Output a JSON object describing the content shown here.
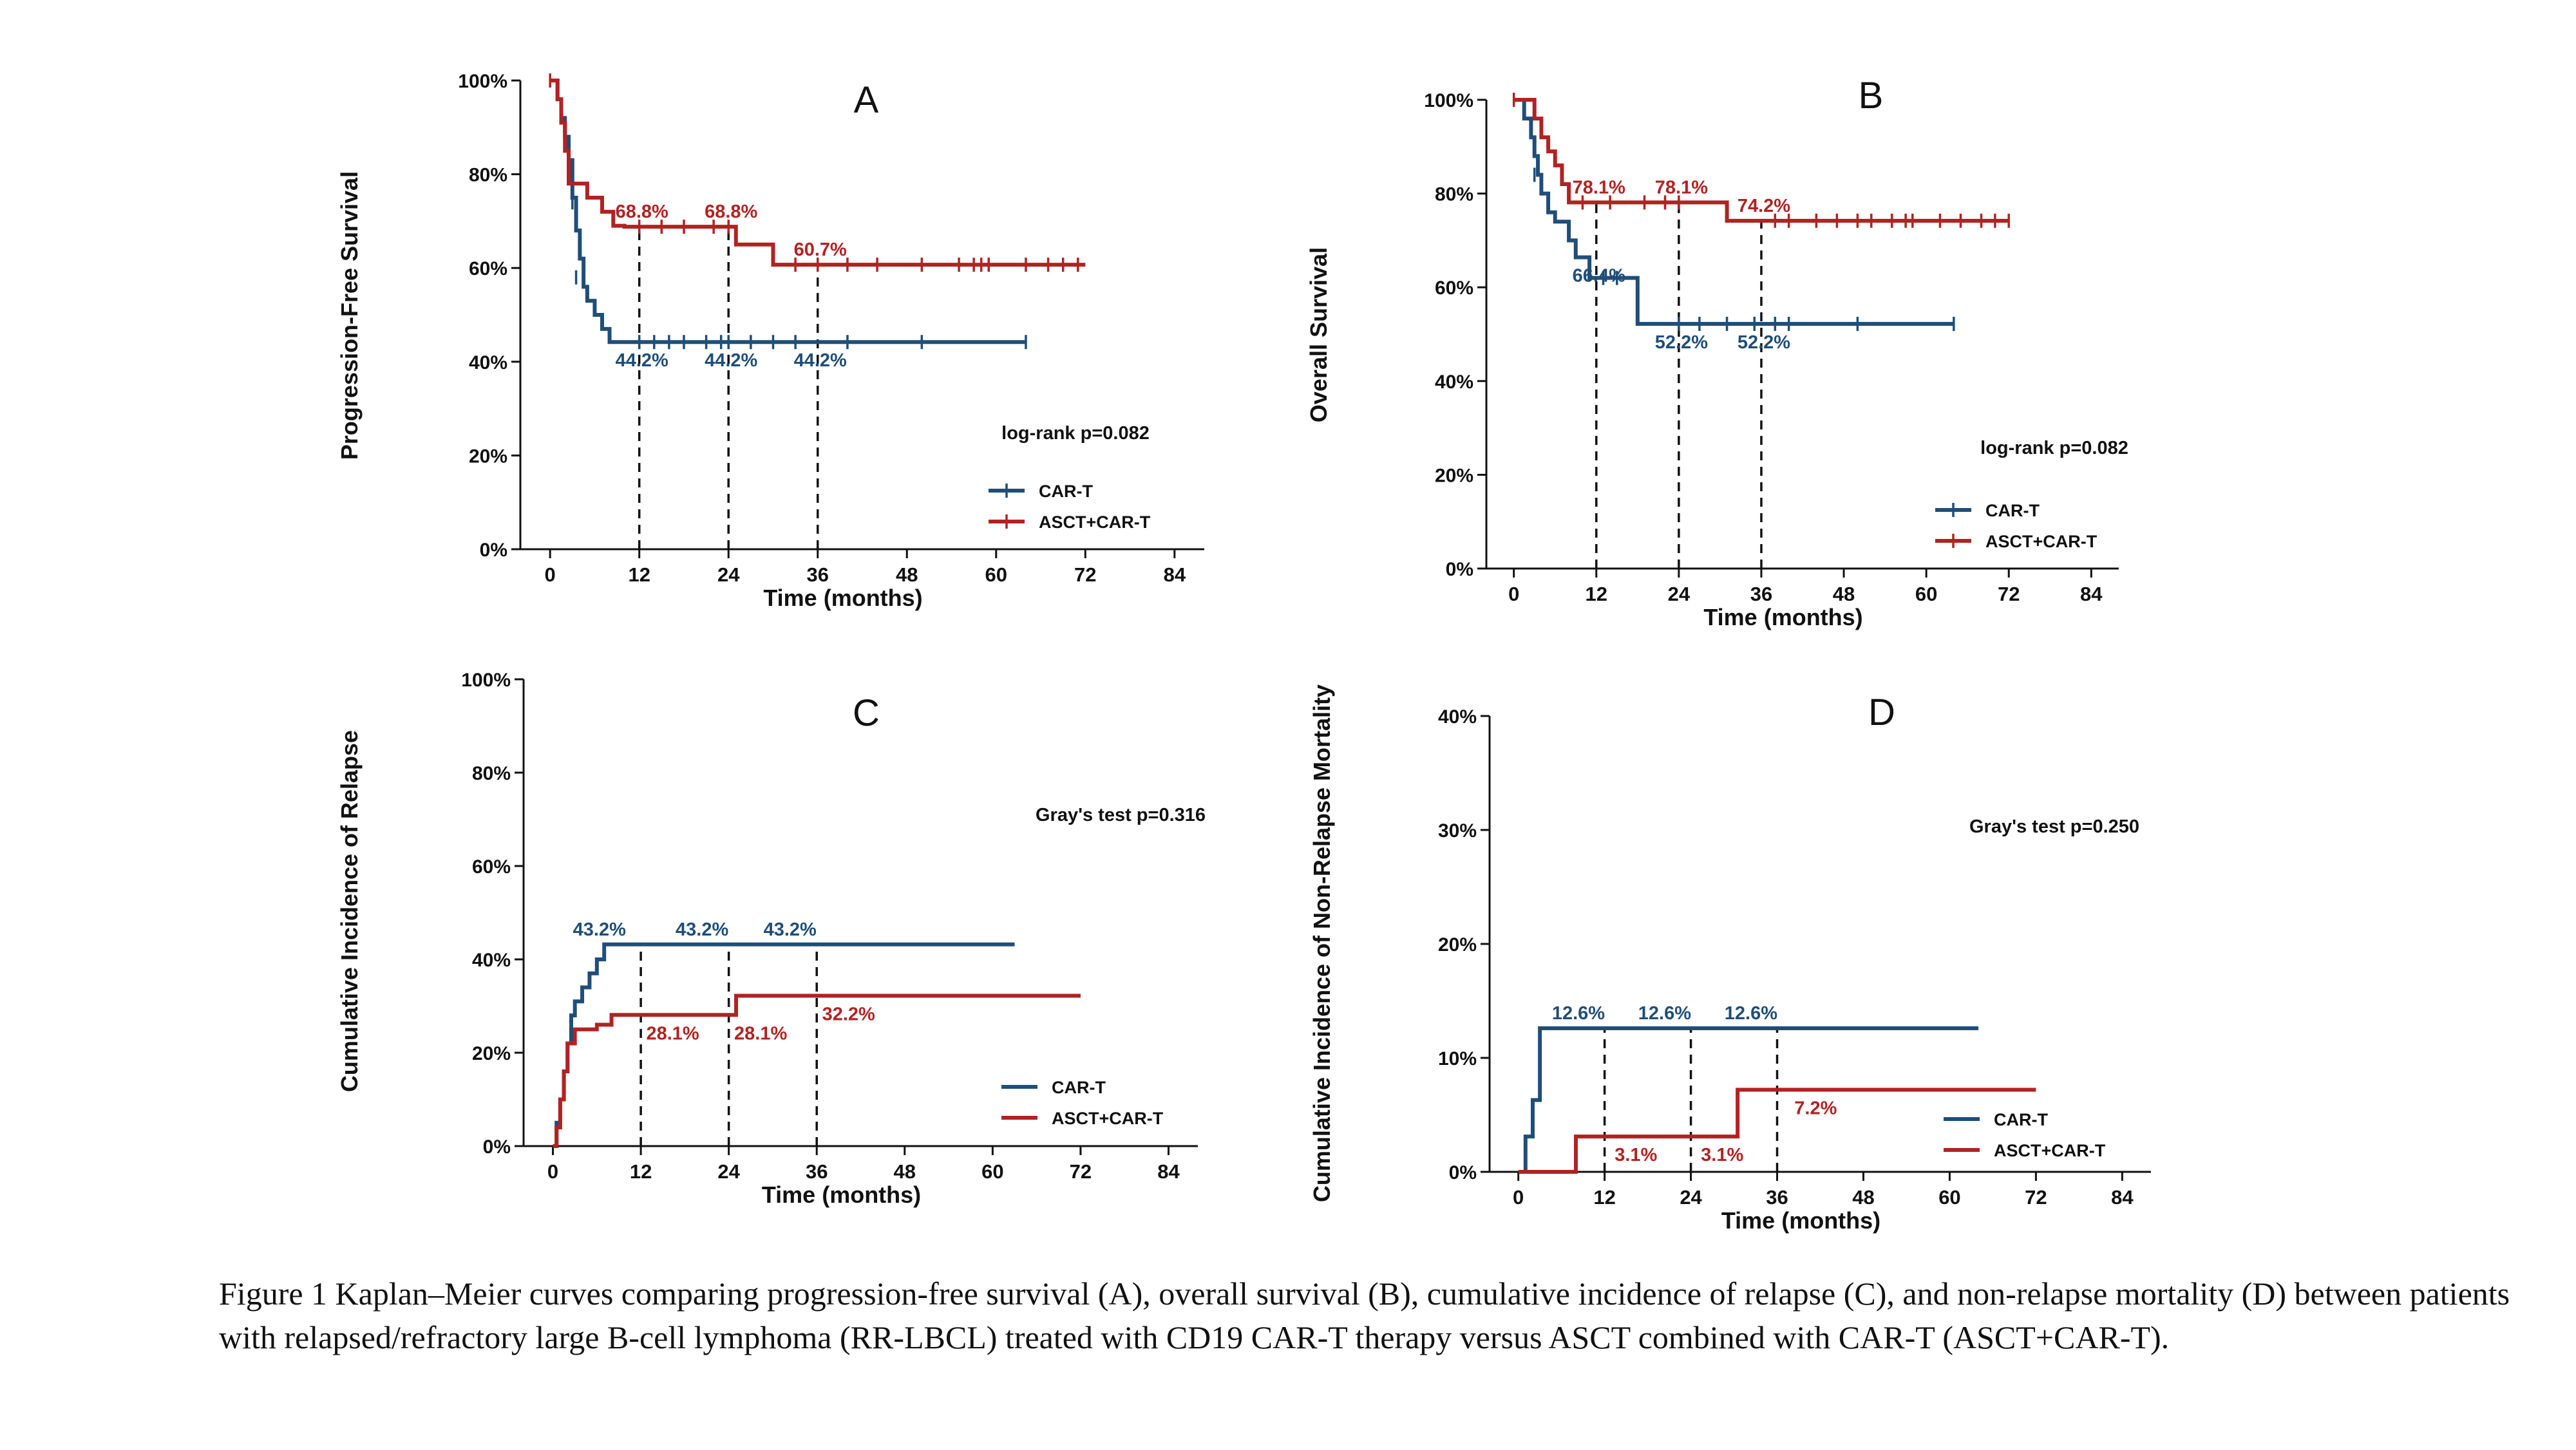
{
  "colors": {
    "car_t": "#1f4e79",
    "asct": "#b22222",
    "axis": "#111111"
  },
  "caption": "Figure 1 Kaplan–Meier curves comparing progression-free survival (A), overall survival (B), cumulative incidence of relapse (C), and non-relapse mortality (D) between patients with relapsed/refractory large B-cell lymphoma (RR-LBCL) treated with CD19 CAR-T therapy versus ASCT combined with CAR-T (ASCT+CAR-T).",
  "chart_data": [
    {
      "id": "A",
      "type": "line",
      "panel_letter": "A",
      "ylabel": "Progression-Free Survival",
      "xlabel": "Time (months)",
      "xlim": [
        -4,
        88
      ],
      "ylim": [
        0,
        100
      ],
      "xticks": [
        0,
        12,
        24,
        36,
        48,
        60,
        72,
        84
      ],
      "yticks": [
        0,
        20,
        40,
        60,
        80,
        100
      ],
      "ytick_labels": [
        "0%",
        "20%",
        "40%",
        "60%",
        "80%",
        "100%"
      ],
      "stat_text": "log-rank p=0.082",
      "legend": [
        "CAR-T",
        "ASCT+CAR-T"
      ],
      "reference_times": [
        12,
        24,
        36
      ],
      "series": [
        {
          "name": "CAR-T",
          "color_key": "car_t",
          "steps": [
            [
              0,
              100
            ],
            [
              1,
              96
            ],
            [
              1.5,
              92
            ],
            [
              2,
              88
            ],
            [
              2.5,
              83
            ],
            [
              3,
              75
            ],
            [
              3.5,
              68
            ],
            [
              4,
              62
            ],
            [
              4.5,
              56
            ],
            [
              5,
              53
            ],
            [
              6,
              50
            ],
            [
              7,
              47
            ],
            [
              8,
              44.2
            ],
            [
              64,
              44.2
            ]
          ],
          "censors": [
            [
              3,
              74
            ],
            [
              3.5,
              58
            ],
            [
              12,
              44.2
            ],
            [
              14,
              44.2
            ],
            [
              16,
              44.2
            ],
            [
              18,
              44.2
            ],
            [
              21,
              44.2
            ],
            [
              23,
              44.2
            ],
            [
              24,
              44.2
            ],
            [
              27,
              44.2
            ],
            [
              30,
              44.2
            ],
            [
              33,
              44.2
            ],
            [
              40,
              44.2
            ],
            [
              50,
              44.2
            ],
            [
              64,
              44.2
            ]
          ],
          "annotations": [
            {
              "x": 12,
              "y": 44.2,
              "text": "44.2%"
            },
            {
              "x": 24,
              "y": 44.2,
              "text": "44.2%"
            },
            {
              "x": 36,
              "y": 44.2,
              "text": "44.2%"
            }
          ]
        },
        {
          "name": "ASCT+CAR-T",
          "color_key": "asct",
          "steps": [
            [
              0,
              100
            ],
            [
              1,
              96
            ],
            [
              1.5,
              91
            ],
            [
              2,
              85
            ],
            [
              2.5,
              78
            ],
            [
              5,
              75
            ],
            [
              7,
              72
            ],
            [
              8.5,
              69
            ],
            [
              10,
              68.8
            ],
            [
              24,
              68.8
            ],
            [
              25,
              65
            ],
            [
              30,
              60.7
            ],
            [
              72,
              60.7
            ]
          ],
          "censors": [
            [
              0,
              100
            ],
            [
              12,
              68.8
            ],
            [
              15,
              68.8
            ],
            [
              18,
              68.8
            ],
            [
              22,
              68.8
            ],
            [
              24,
              68.8
            ],
            [
              33,
              60.7
            ],
            [
              36,
              60.7
            ],
            [
              40,
              60.7
            ],
            [
              44,
              60.7
            ],
            [
              50,
              60.7
            ],
            [
              55,
              60.7
            ],
            [
              57,
              60.7
            ],
            [
              58,
              60.7
            ],
            [
              59,
              60.7
            ],
            [
              64,
              60.7
            ],
            [
              67,
              60.7
            ],
            [
              69,
              60.7
            ],
            [
              71,
              60.7
            ]
          ],
          "annotations": [
            {
              "x": 12,
              "y": 68.8,
              "text": "68.8%"
            },
            {
              "x": 24,
              "y": 68.8,
              "text": "68.8%"
            },
            {
              "x": 36,
              "y": 60.7,
              "text": "60.7%"
            }
          ]
        }
      ]
    },
    {
      "id": "B",
      "type": "line",
      "panel_letter": "B",
      "ylabel": "Overall Survival",
      "xlabel": "Time (months)",
      "xlim": [
        -4,
        88
      ],
      "ylim": [
        0,
        100
      ],
      "xticks": [
        0,
        12,
        24,
        36,
        48,
        60,
        72,
        84
      ],
      "yticks": [
        0,
        20,
        40,
        60,
        80,
        100
      ],
      "ytick_labels": [
        "0%",
        "20%",
        "40%",
        "60%",
        "80%",
        "100%"
      ],
      "stat_text": "log-rank p=0.082",
      "legend": [
        "CAR-T",
        "ASCT+CAR-T"
      ],
      "reference_times": [
        12,
        24,
        36
      ],
      "series": [
        {
          "name": "CAR-T",
          "color_key": "car_t",
          "steps": [
            [
              0,
              100
            ],
            [
              1.5,
              96
            ],
            [
              2.5,
              92
            ],
            [
              3,
              88
            ],
            [
              3.5,
              84
            ],
            [
              4,
              80
            ],
            [
              5,
              76
            ],
            [
              6,
              74
            ],
            [
              8,
              70
            ],
            [
              9,
              66.4
            ],
            [
              11,
              62
            ],
            [
              18,
              52.2
            ],
            [
              64,
              52.2
            ]
          ],
          "censors": [
            [
              3,
              84
            ],
            [
              13,
              62
            ],
            [
              15,
              62
            ],
            [
              24,
              52.2
            ],
            [
              27,
              52.2
            ],
            [
              31,
              52.2
            ],
            [
              35,
              52.2
            ],
            [
              38,
              52.2
            ],
            [
              40,
              52.2
            ],
            [
              50,
              52.2
            ],
            [
              64,
              52.2
            ]
          ],
          "annotations": [
            {
              "x": 12,
              "y": 66.4,
              "text": "66.4%"
            },
            {
              "x": 24,
              "y": 52.2,
              "text": "52.2%"
            },
            {
              "x": 36,
              "y": 52.2,
              "text": "52.2%"
            }
          ]
        },
        {
          "name": "ASCT+CAR-T",
          "color_key": "asct",
          "steps": [
            [
              0,
              100
            ],
            [
              3,
              96
            ],
            [
              4,
              92
            ],
            [
              5,
              89
            ],
            [
              6,
              86
            ],
            [
              7,
              82
            ],
            [
              8,
              78.1
            ],
            [
              30,
              78.1
            ],
            [
              31,
              74.2
            ],
            [
              72,
              74.2
            ]
          ],
          "censors": [
            [
              0,
              100
            ],
            [
              10,
              78.1
            ],
            [
              14,
              78.1
            ],
            [
              19,
              78.1
            ],
            [
              22,
              78.1
            ],
            [
              24,
              78.1
            ],
            [
              38,
              74.2
            ],
            [
              40,
              74.2
            ],
            [
              44,
              74.2
            ],
            [
              47,
              74.2
            ],
            [
              50,
              74.2
            ],
            [
              52,
              74.2
            ],
            [
              55,
              74.2
            ],
            [
              57,
              74.2
            ],
            [
              58,
              74.2
            ],
            [
              62,
              74.2
            ],
            [
              65,
              74.2
            ],
            [
              68,
              74.2
            ],
            [
              70,
              74.2
            ],
            [
              72,
              74.2
            ]
          ],
          "annotations": [
            {
              "x": 12,
              "y": 78.1,
              "text": "78.1%"
            },
            {
              "x": 24,
              "y": 78.1,
              "text": "78.1%"
            },
            {
              "x": 36,
              "y": 74.2,
              "text": "74.2%"
            }
          ]
        }
      ]
    },
    {
      "id": "C",
      "type": "line",
      "panel_letter": "C",
      "ylabel": "Cumulative Incidence of Relapse",
      "xlabel": "Time (months)",
      "xlim": [
        -4,
        88
      ],
      "ylim": [
        0,
        100
      ],
      "xticks": [
        0,
        12,
        24,
        36,
        48,
        60,
        72,
        84
      ],
      "yticks": [
        0,
        20,
        40,
        60,
        80,
        100
      ],
      "ytick_labels": [
        "0%",
        "20%",
        "40%",
        "60%",
        "80%",
        "100%"
      ],
      "stat_text": "Gray's test p=0.316",
      "legend": [
        "CAR-T",
        "ASCT+CAR-T"
      ],
      "reference_times": [
        12,
        24,
        36
      ],
      "series": [
        {
          "name": "CAR-T",
          "color_key": "car_t",
          "steps": [
            [
              0,
              0
            ],
            [
              0.5,
              5
            ],
            [
              1,
              10
            ],
            [
              1.5,
              16
            ],
            [
              2,
              22
            ],
            [
              2.5,
              28
            ],
            [
              3,
              31
            ],
            [
              4,
              34
            ],
            [
              5,
              37
            ],
            [
              6,
              40
            ],
            [
              7,
              43.2
            ],
            [
              63,
              43.2
            ]
          ],
          "censors": [],
          "annotations": [
            {
              "x": 6,
              "y": 43.2,
              "text": "43.2%"
            },
            {
              "x": 20,
              "y": 43.2,
              "text": "43.2%"
            },
            {
              "x": 32,
              "y": 43.2,
              "text": "43.2%"
            }
          ]
        },
        {
          "name": "ASCT+CAR-T",
          "color_key": "asct",
          "steps": [
            [
              0,
              0
            ],
            [
              0.5,
              4
            ],
            [
              1,
              10
            ],
            [
              1.5,
              16
            ],
            [
              2,
              22
            ],
            [
              3,
              25
            ],
            [
              6,
              26
            ],
            [
              8,
              28.1
            ],
            [
              24,
              28.1
            ],
            [
              25,
              32.2
            ],
            [
              72,
              32.2
            ]
          ],
          "censors": [],
          "annotations": [
            {
              "x": 16,
              "y": 28.1,
              "text": "28.1%"
            },
            {
              "x": 28,
              "y": 28.1,
              "text": "28.1%"
            },
            {
              "x": 40,
              "y": 32.2,
              "text": "32.2%"
            }
          ]
        }
      ]
    },
    {
      "id": "D",
      "type": "line",
      "panel_letter": "D",
      "ylabel": "Cumulative Incidence of Non-Relapse Mortality",
      "xlabel": "Time (months)",
      "xlim": [
        -4,
        88
      ],
      "ylim": [
        0,
        40
      ],
      "xticks": [
        0,
        12,
        24,
        36,
        48,
        60,
        72,
        84
      ],
      "yticks": [
        0,
        10,
        20,
        30,
        40
      ],
      "ytick_labels": [
        "0%",
        "10%",
        "20%",
        "30%",
        "40%"
      ],
      "stat_text": "Gray's test p=0.250",
      "legend": [
        "CAR-T",
        "ASCT+CAR-T"
      ],
      "reference_times": [
        12,
        24,
        36
      ],
      "series": [
        {
          "name": "CAR-T",
          "color_key": "car_t",
          "steps": [
            [
              0,
              0
            ],
            [
              1,
              3.1
            ],
            [
              2,
              6.3
            ],
            [
              3,
              12.6
            ],
            [
              64,
              12.6
            ]
          ],
          "censors": [],
          "annotations": [
            {
              "x": 8,
              "y": 12.6,
              "text": "12.6%"
            },
            {
              "x": 20,
              "y": 12.6,
              "text": "12.6%"
            },
            {
              "x": 32,
              "y": 12.6,
              "text": "12.6%"
            }
          ]
        },
        {
          "name": "ASCT+CAR-T",
          "color_key": "asct",
          "steps": [
            [
              0,
              0
            ],
            [
              8,
              3.1
            ],
            [
              30,
              3.1
            ],
            [
              30.5,
              7.2
            ],
            [
              72,
              7.2
            ]
          ],
          "censors": [],
          "annotations": [
            {
              "x": 16,
              "y": 3.1,
              "text": "3.1%"
            },
            {
              "x": 28,
              "y": 3.1,
              "text": "3.1%"
            },
            {
              "x": 41,
              "y": 7.2,
              "text": "7.2%"
            }
          ]
        }
      ]
    }
  ]
}
